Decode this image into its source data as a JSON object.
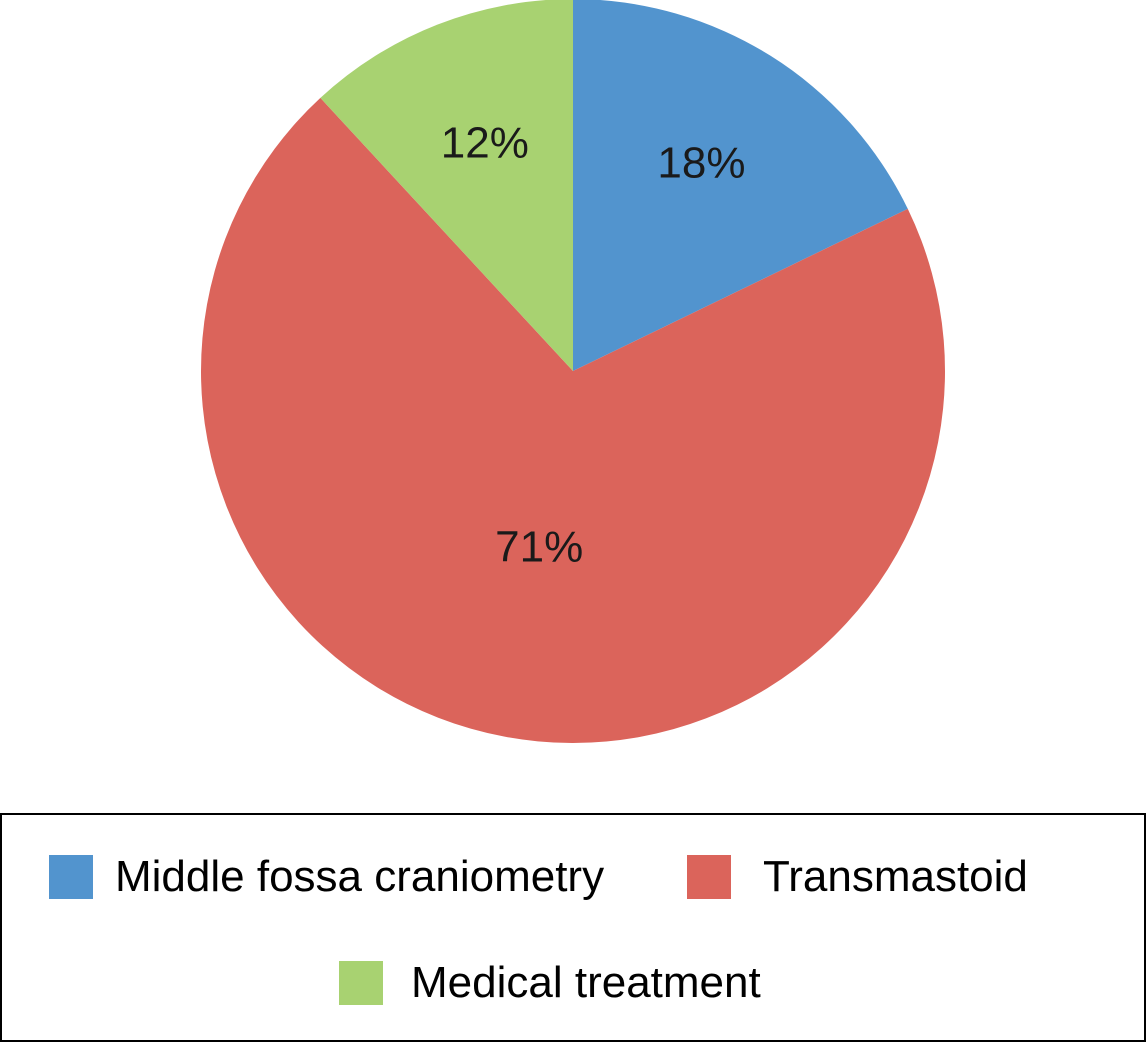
{
  "chart_data": {
    "type": "pie",
    "title": "",
    "start_angle": "12 o'clock",
    "direction": "clockwise",
    "slices": [
      {
        "label": "Middle fossa craniometry",
        "value": 18,
        "display": "18%",
        "color": "#5294CE"
      },
      {
        "label": "Transmastoid",
        "value": 71,
        "display": "71%",
        "color": "#DB645B"
      },
      {
        "label": "Medical treatment",
        "value": 12,
        "display": "12%",
        "color": "#A8D271"
      }
    ],
    "legend": {
      "placement": "bottom",
      "entries": [
        "Middle fossa craniometry",
        "Transmastoid",
        "Medical treatment"
      ]
    }
  }
}
